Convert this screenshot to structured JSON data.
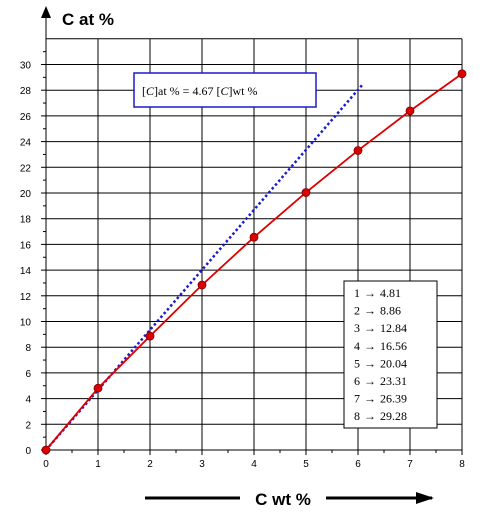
{
  "chart_data": {
    "type": "line",
    "ylabel": "C at %",
    "xlabel": "C wt %",
    "xlim": [
      0,
      8
    ],
    "ylim": [
      0,
      32
    ],
    "x_ticks": [
      "0",
      "1",
      "2",
      "3",
      "4",
      "5",
      "6",
      "7",
      "8"
    ],
    "y_ticks": [
      "0",
      "2",
      "4",
      "6",
      "8",
      "10",
      "12",
      "14",
      "16",
      "18",
      "20",
      "22",
      "24",
      "26",
      "28",
      "30"
    ],
    "grid": true,
    "series": [
      {
        "style": "red solid line with red dot markers",
        "color": "#dd0000",
        "x": [
          0,
          1,
          2,
          3,
          4,
          5,
          6,
          7,
          8
        ],
        "y": [
          0,
          4.81,
          8.86,
          12.84,
          16.56,
          20.04,
          23.31,
          26.39,
          29.28
        ]
      },
      {
        "style": "blue dotted line",
        "color": "#1a1ad0",
        "x": [
          0,
          6.1
        ],
        "y": [
          0,
          28.5
        ]
      }
    ],
    "annotation": {
      "var": "C",
      "suffix": "at % = 4.67 ",
      "end": "wt %"
    },
    "table": [
      {
        "n": "1",
        "arrow": "→",
        "val": "4.81"
      },
      {
        "n": "2",
        "arrow": "→",
        "val": "8.86"
      },
      {
        "n": "3",
        "arrow": "→",
        "val": "12.84"
      },
      {
        "n": "4",
        "arrow": "→",
        "val": "16.56"
      },
      {
        "n": "5",
        "arrow": "→",
        "val": "20.04"
      },
      {
        "n": "6",
        "arrow": "→",
        "val": "23.31"
      },
      {
        "n": "7",
        "arrow": "→",
        "val": "26.39"
      },
      {
        "n": "8",
        "arrow": "→",
        "val": "29.28"
      }
    ]
  }
}
